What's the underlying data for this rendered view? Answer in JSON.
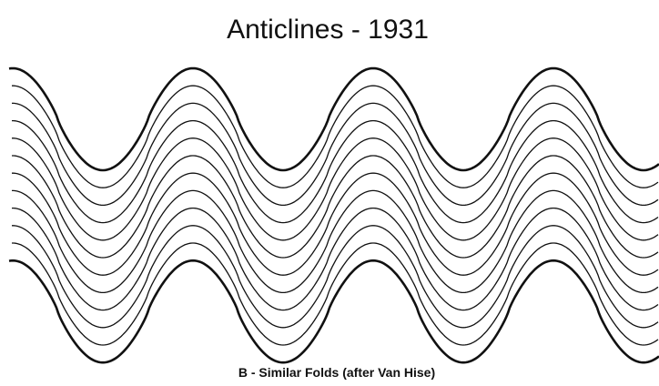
{
  "title": "Anticlines - 1931",
  "caption": "B - Similar Folds (after Van Hise)"
}
